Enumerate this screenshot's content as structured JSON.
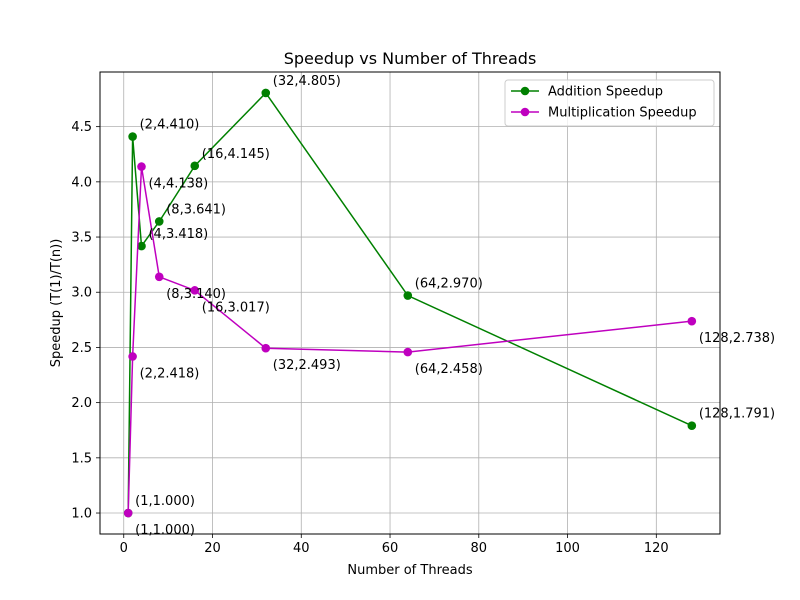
{
  "chart_data": {
    "type": "line",
    "title": "Speedup vs Number of Threads",
    "xlabel": "Number of Threads",
    "ylabel": "Speedup (T(1)/T(n))",
    "xlim": [
      -5.35,
      134.35
    ],
    "ylim": [
      0.81,
      4.995
    ],
    "xticks": [
      0,
      20,
      40,
      60,
      80,
      100,
      120
    ],
    "xtick_labels": [
      "0",
      "20",
      "40",
      "60",
      "80",
      "100",
      "120"
    ],
    "yticks": [
      1.0,
      1.5,
      2.0,
      2.5,
      3.0,
      3.5,
      4.0,
      4.5
    ],
    "ytick_labels": [
      "1.0",
      "1.5",
      "2.0",
      "2.5",
      "3.0",
      "3.5",
      "4.0",
      "4.5"
    ],
    "grid": true,
    "legend_position": "upper right",
    "series": [
      {
        "name": "Addition Speedup",
        "color": "#008000",
        "marker": "circle",
        "x": [
          1,
          2,
          4,
          8,
          16,
          32,
          64,
          128
        ],
        "y": [
          1.0,
          4.41,
          3.418,
          3.641,
          4.145,
          4.805,
          2.97,
          1.791
        ],
        "labels": [
          "(1,1.000)",
          "(2,4.410)",
          "(4,3.418)",
          "(8,3.641)",
          "(16,4.145)",
          "(32,4.805)",
          "(64,2.970)",
          "(128,1.791)"
        ]
      },
      {
        "name": "Multiplication Speedup",
        "color": "#bf00bf",
        "marker": "circle",
        "x": [
          1,
          2,
          4,
          8,
          16,
          32,
          64,
          128
        ],
        "y": [
          1.0,
          2.418,
          4.138,
          3.14,
          3.017,
          2.493,
          2.458,
          2.738
        ],
        "labels": [
          "(1,1.000)",
          "(2,2.418)",
          "(4,4.138)",
          "(8,3.140)",
          "(16,3.017)",
          "(32,2.493)",
          "(64,2.458)",
          "(128,2.738)"
        ]
      }
    ]
  }
}
